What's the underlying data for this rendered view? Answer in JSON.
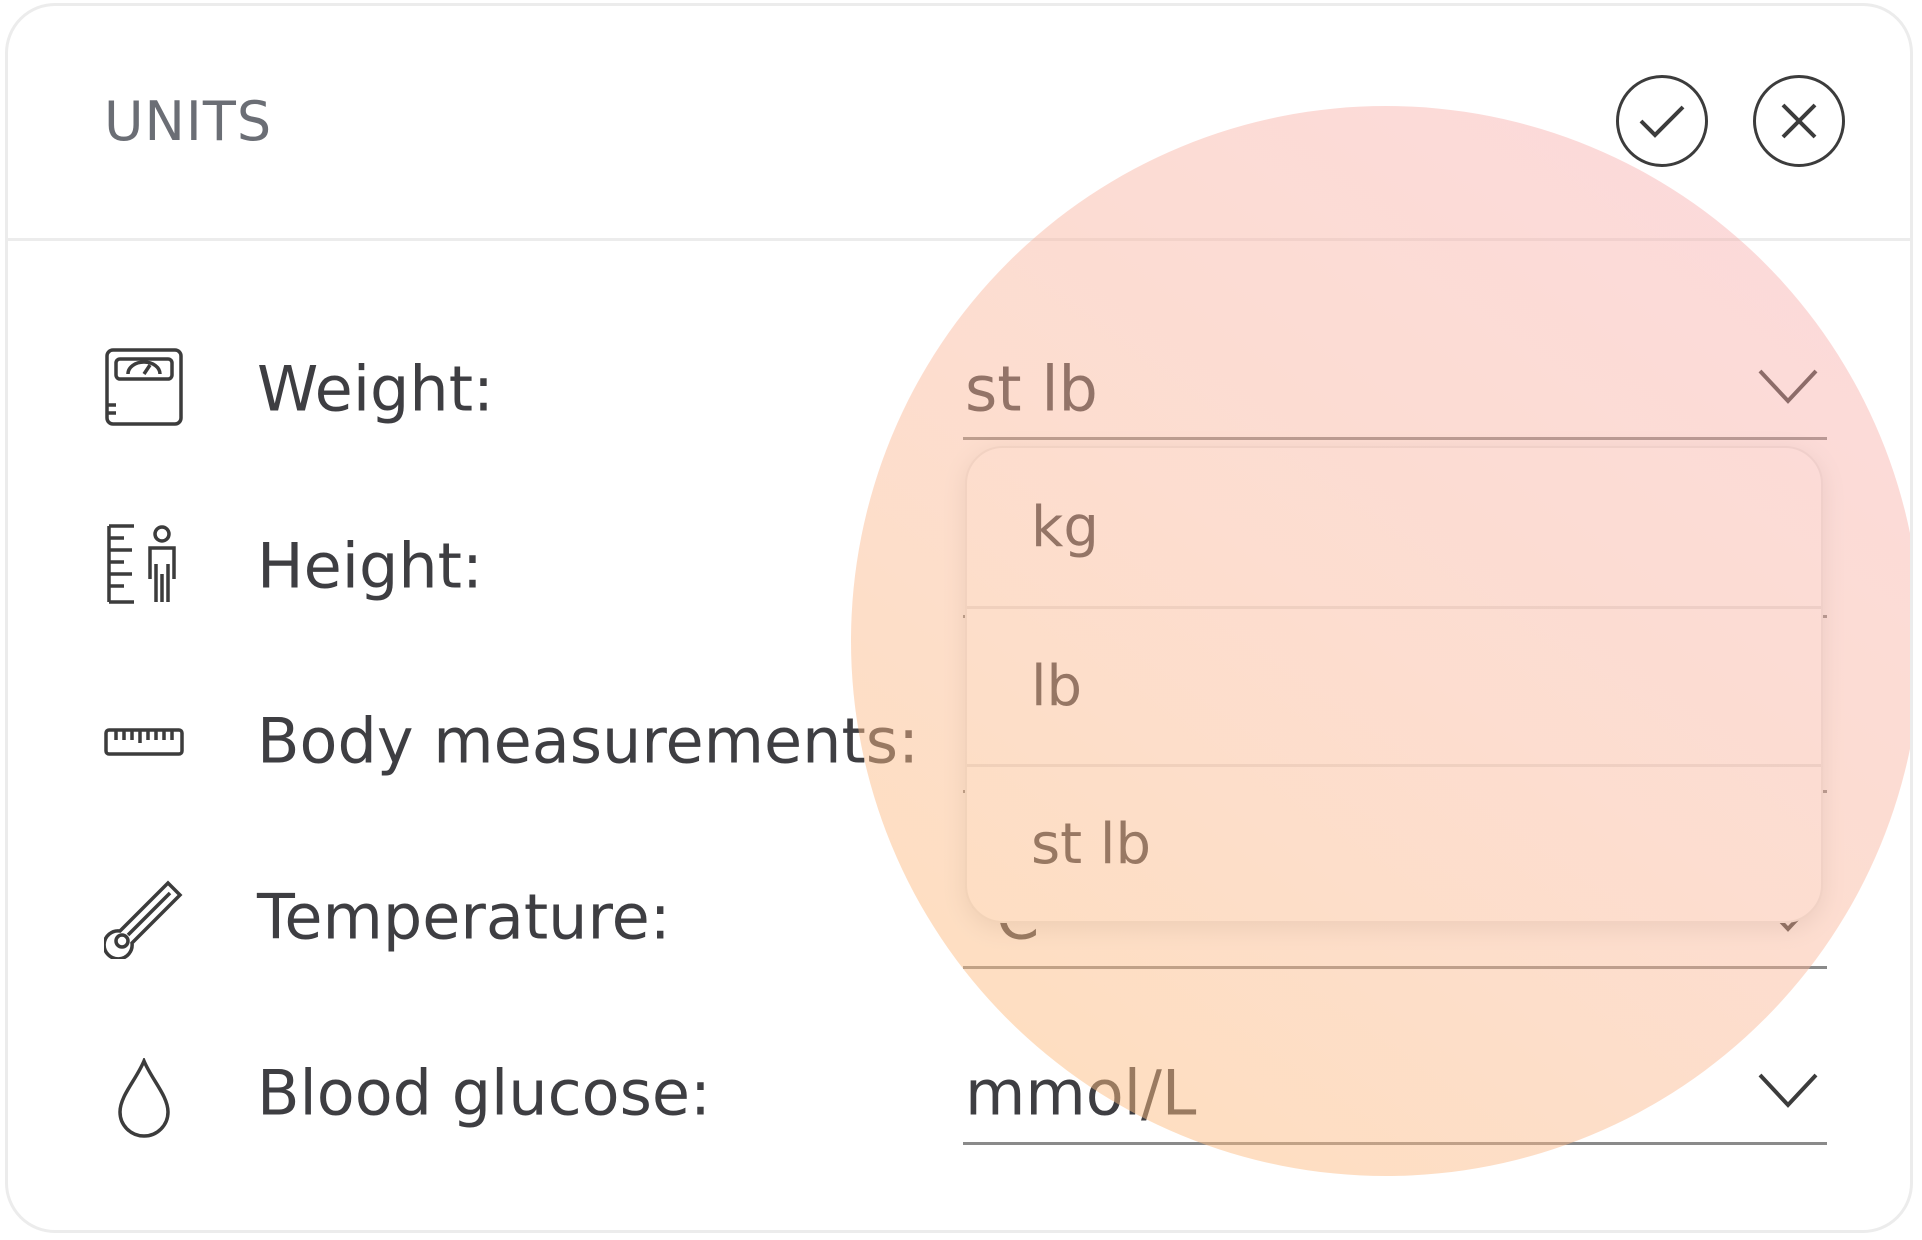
{
  "header": {
    "title": "UNITS"
  },
  "rows": [
    {
      "label": "Weight:",
      "value": "st lb"
    },
    {
      "label": "Height:"
    },
    {
      "label": "Body measurements:"
    },
    {
      "label": "Temperature:",
      "value": "°C"
    },
    {
      "label": "Blood glucose:",
      "value": "mmol/L"
    }
  ],
  "dropdown": {
    "options": [
      "kg",
      "lb",
      "st lb"
    ]
  }
}
